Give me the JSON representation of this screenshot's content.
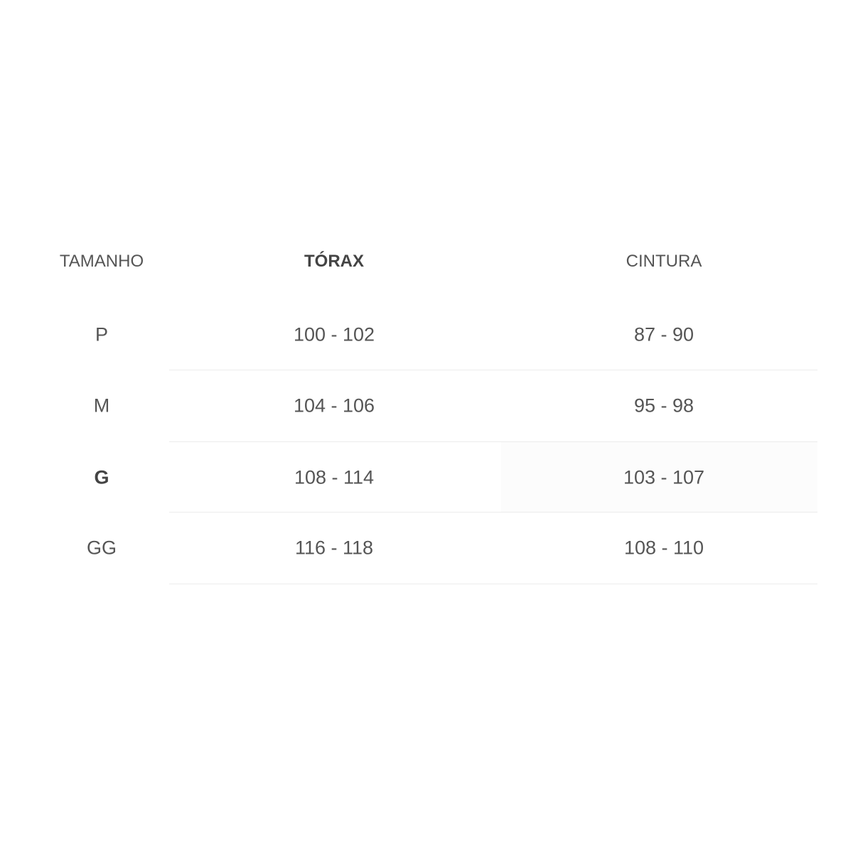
{
  "table": {
    "headers": [
      "TAMANHO",
      "TÓRAX",
      "CINTURA"
    ],
    "rows": [
      {
        "size": "P",
        "torax": "100 - 102",
        "cintura": "87 - 90"
      },
      {
        "size": "M",
        "torax": "104 - 106",
        "cintura": "95 - 98"
      },
      {
        "size": "G",
        "torax": "108 - 114",
        "cintura": "103 - 107"
      },
      {
        "size": "GG",
        "torax": "116 - 118",
        "cintura": "108 - 110"
      }
    ]
  }
}
